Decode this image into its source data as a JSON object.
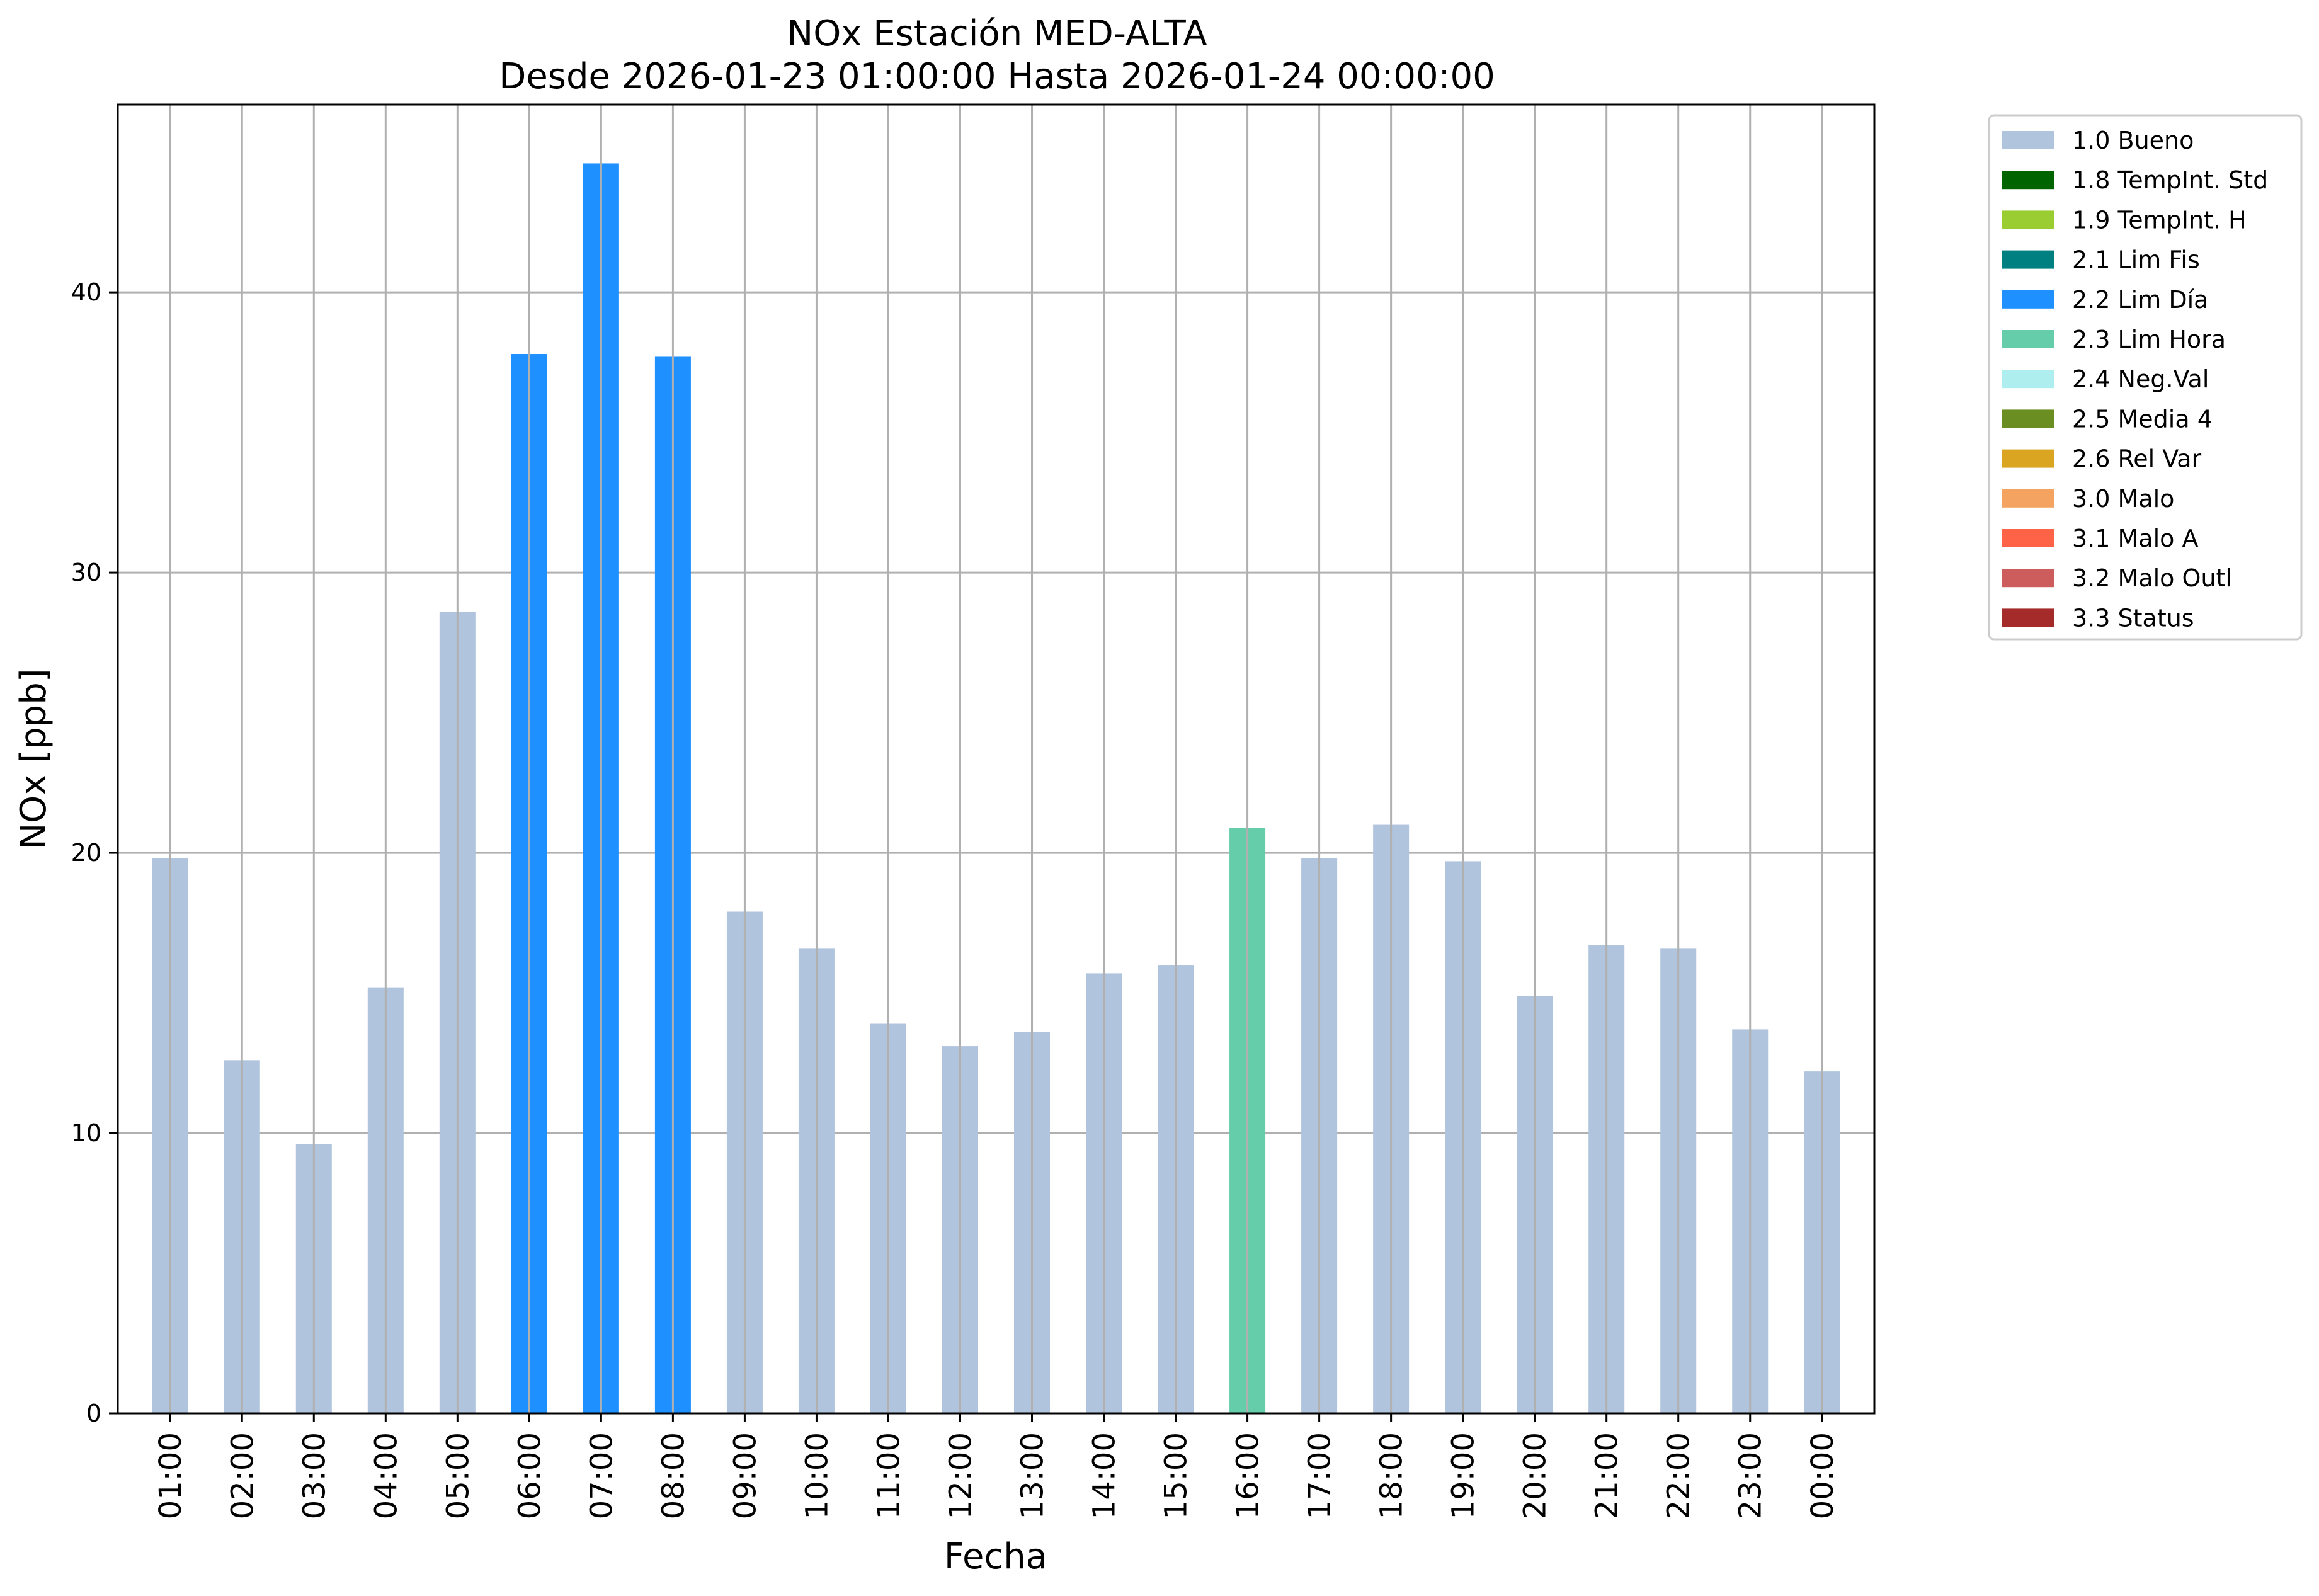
{
  "chart_data": {
    "type": "bar",
    "title": "NOx Estación MED-ALTA",
    "subtitle": "Desde 2026-01-23 01:00:00 Hasta 2026-01-24 00:00:00",
    "xlabel": "Fecha",
    "ylabel": "NOx [ppb]",
    "ylim": [
      0,
      46.7
    ],
    "yticks": [
      0,
      10,
      20,
      30,
      40
    ],
    "grid": true,
    "legend_position": "outside-top-right",
    "categories": [
      "01:00",
      "02:00",
      "03:00",
      "04:00",
      "05:00",
      "06:00",
      "07:00",
      "08:00",
      "09:00",
      "10:00",
      "11:00",
      "12:00",
      "13:00",
      "14:00",
      "15:00",
      "16:00",
      "17:00",
      "18:00",
      "19:00",
      "20:00",
      "21:00",
      "22:00",
      "23:00",
      "00:00"
    ],
    "values": [
      19.8,
      12.6,
      9.6,
      15.2,
      28.6,
      37.8,
      44.6,
      37.7,
      17.9,
      16.6,
      13.9,
      13.1,
      13.6,
      15.7,
      16.0,
      20.9,
      19.8,
      21.0,
      19.7,
      14.9,
      16.7,
      16.6,
      13.7,
      12.2
    ],
    "flags": [
      "1.0",
      "1.0",
      "1.0",
      "1.0",
      "1.0",
      "2.2",
      "2.2",
      "2.2",
      "1.0",
      "1.0",
      "1.0",
      "1.0",
      "1.0",
      "1.0",
      "1.0",
      "2.3",
      "1.0",
      "1.0",
      "1.0",
      "1.0",
      "1.0",
      "1.0",
      "1.0",
      "1.0"
    ],
    "legend": [
      {
        "code": "1.0",
        "label": "1.0 Bueno",
        "color": "#B0C4DE"
      },
      {
        "code": "1.8",
        "label": "1.8 TempInt. Std",
        "color": "#006400"
      },
      {
        "code": "1.9",
        "label": "1.9 TempInt. H",
        "color": "#9ACD32"
      },
      {
        "code": "2.1",
        "label": "2.1 Lim Fis",
        "color": "#008080"
      },
      {
        "code": "2.2",
        "label": "2.2 Lim Día",
        "color": "#1E90FF"
      },
      {
        "code": "2.3",
        "label": "2.3 Lim Hora",
        "color": "#66CDAA"
      },
      {
        "code": "2.4",
        "label": "2.4 Neg.Val",
        "color": "#AFEEEE"
      },
      {
        "code": "2.5",
        "label": "2.5 Media 4",
        "color": "#6B8E23"
      },
      {
        "code": "2.6",
        "label": "2.6 Rel Var",
        "color": "#DAA520"
      },
      {
        "code": "3.0",
        "label": "3.0 Malo",
        "color": "#F4A460"
      },
      {
        "code": "3.1",
        "label": "3.1 Malo A",
        "color": "#FF6347"
      },
      {
        "code": "3.2",
        "label": "3.2 Malo Outl",
        "color": "#CD5C5C"
      },
      {
        "code": "3.3",
        "label": "3.3 Status",
        "color": "#A52A2A"
      }
    ]
  }
}
